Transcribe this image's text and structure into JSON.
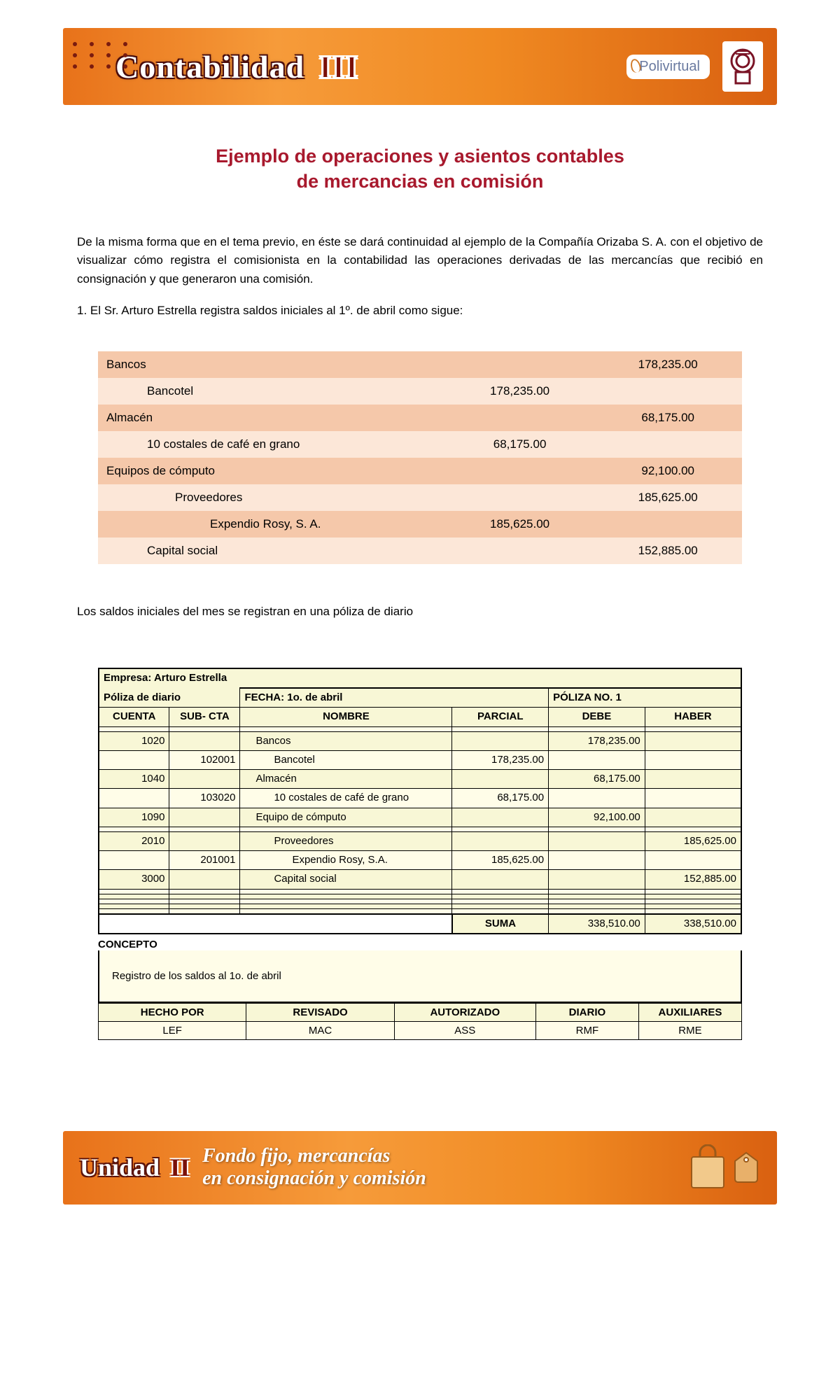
{
  "header": {
    "title_main": "Contabilidad",
    "title_roman": "III",
    "polivirtual": "Polivirtual"
  },
  "main_title_l1": "Ejemplo de operaciones y asientos contables",
  "main_title_l2": "de mercancias en comisión",
  "intro": "De la misma forma que en el tema previo, en éste se dará continuidad al ejemplo de la Compañía Orizaba S. A. con el objetivo de visualizar cómo registra el comisionista en la contabilidad las operaciones derivadas de las mercancías que recibió en consignación y que generaron una comisión.",
  "point1": "1. El Sr. Arturo Estrella registra saldos iniciales al 1º. de abril como sigue:",
  "salmon": {
    "rows": [
      {
        "shade": "dark",
        "c1": "Bancos",
        "ind": "",
        "c2": "",
        "c3": "178,235.00"
      },
      {
        "shade": "light",
        "c1": "Bancotel",
        "ind": "ind1",
        "c2": "178,235.00",
        "c3": ""
      },
      {
        "shade": "dark",
        "c1": "Almacén",
        "ind": "",
        "c2": "",
        "c3": "68,175.00"
      },
      {
        "shade": "light",
        "c1": "10 costales de café en grano",
        "ind": "ind1",
        "c2": "68,175.00",
        "c3": ""
      },
      {
        "shade": "dark",
        "c1": "Equipos de cómputo",
        "ind": "",
        "c2": "",
        "c3": "92,100.00"
      },
      {
        "shade": "light",
        "c1": "Proveedores",
        "ind": "ind2",
        "c2": "",
        "c3": "185,625.00"
      },
      {
        "shade": "dark",
        "c1": "Expendio Rosy, S. A.",
        "ind": "ind3",
        "c2": "185,625.00",
        "c3": ""
      },
      {
        "shade": "light",
        "c1": "Capital social",
        "ind": "ind1",
        "c2": "",
        "c3": "152,885.00"
      }
    ]
  },
  "midtext": "Los saldos iniciales del mes se registran en una póliza de diario",
  "ledger": {
    "empresa": "Empresa: Arturo Estrella",
    "doc": "Póliza de diario",
    "fecha_label": "FECHA:  1o. de abril",
    "poliza_label": "PÓLIZA NO.  1",
    "headers": [
      "CUENTA",
      "SUB- CTA",
      "NOMBRE",
      "PARCIAL",
      "DEBE",
      "HABER"
    ],
    "rows": [
      {
        "alt": true,
        "cuenta": "",
        "sub": "",
        "nombre": "",
        "ind": "",
        "parcial": "",
        "debe": "",
        "haber": ""
      },
      {
        "alt": false,
        "cuenta": "1020",
        "sub": "",
        "nombre": "Bancos",
        "ind": "",
        "parcial": "",
        "debe": "178,235.00",
        "haber": ""
      },
      {
        "alt": true,
        "cuenta": "",
        "sub": "102001",
        "nombre": "Bancotel",
        "ind": "pl45",
        "parcial": "178,235.00",
        "debe": "",
        "haber": ""
      },
      {
        "alt": false,
        "cuenta": "1040",
        "sub": "",
        "nombre": "Almacén",
        "ind": "",
        "parcial": "",
        "debe": "68,175.00",
        "haber": ""
      },
      {
        "alt": true,
        "cuenta": "",
        "sub": "103020",
        "nombre": "10 costales de café de grano",
        "ind": "pl45",
        "parcial": "68,175.00",
        "debe": "",
        "haber": ""
      },
      {
        "alt": false,
        "cuenta": "1090",
        "sub": "",
        "nombre": "Equipo de cómputo",
        "ind": "",
        "parcial": "",
        "debe": "92,100.00",
        "haber": ""
      },
      {
        "alt": true,
        "cuenta": "",
        "sub": "",
        "nombre": "",
        "ind": "",
        "parcial": "",
        "debe": "",
        "haber": ""
      },
      {
        "alt": false,
        "cuenta": "2010",
        "sub": "",
        "nombre": "Proveedores",
        "ind": "pl45",
        "parcial": "",
        "debe": "",
        "haber": "185,625.00"
      },
      {
        "alt": true,
        "cuenta": "",
        "sub": "201001",
        "nombre": "Expendio Rosy, S.A.",
        "ind": "pl70",
        "parcial": "185,625.00",
        "debe": "",
        "haber": ""
      },
      {
        "alt": false,
        "cuenta": "3000",
        "sub": "",
        "nombre": "Capital social",
        "ind": "pl45",
        "parcial": "",
        "debe": "",
        "haber": "152,885.00"
      },
      {
        "alt": true,
        "cuenta": "",
        "sub": "",
        "nombre": "",
        "ind": "",
        "parcial": "",
        "debe": "",
        "haber": ""
      },
      {
        "alt": false,
        "cuenta": "",
        "sub": "",
        "nombre": "",
        "ind": "",
        "parcial": "",
        "debe": "",
        "haber": ""
      },
      {
        "alt": true,
        "cuenta": "",
        "sub": "",
        "nombre": "",
        "ind": "",
        "parcial": "",
        "debe": "",
        "haber": ""
      },
      {
        "alt": false,
        "cuenta": "",
        "sub": "",
        "nombre": "",
        "ind": "",
        "parcial": "",
        "debe": "",
        "haber": ""
      },
      {
        "alt": true,
        "cuenta": "",
        "sub": "",
        "nombre": "",
        "ind": "",
        "parcial": "",
        "debe": "",
        "haber": ""
      }
    ],
    "suma_label": "SUMA",
    "suma_debe": "338,510.00",
    "suma_haber": "338,510.00",
    "concepto_label": "CONCEPTO",
    "concepto_text": "Registro de los saldos al 1o. de abril",
    "sign_headers": [
      "HECHO POR",
      "REVISADO",
      "AUTORIZADO",
      "DIARIO",
      "AUXILIARES"
    ],
    "sign_values": [
      "LEF",
      "MAC",
      "ASS",
      "RMF",
      "RME"
    ]
  },
  "footer": {
    "unidad": "Unidad",
    "roman": "II",
    "line1": "Fondo fijo, mercancías",
    "line2": "en consignación y comisión"
  }
}
